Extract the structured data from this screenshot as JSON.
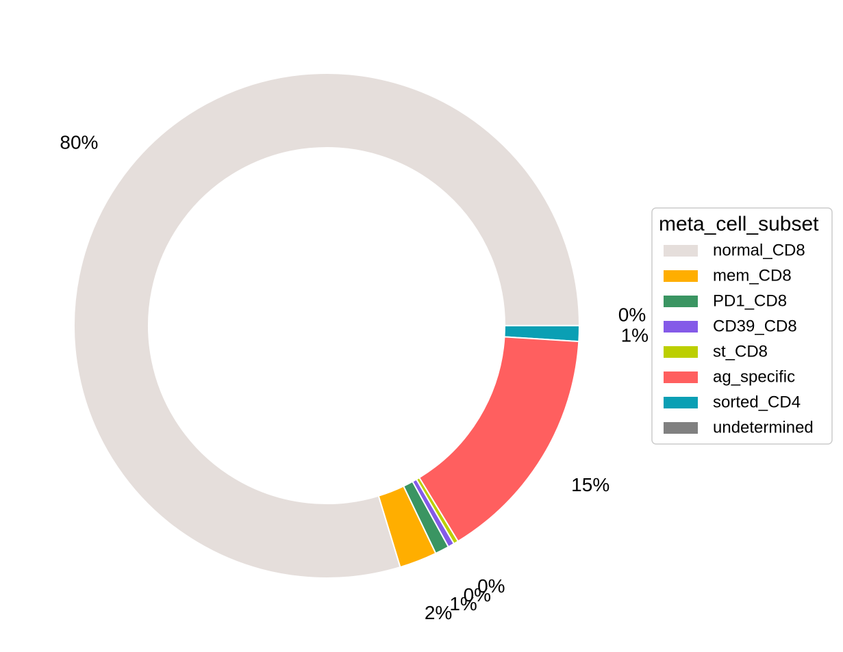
{
  "chart_data": {
    "type": "pie",
    "donut": true,
    "legend": {
      "title": "meta_cell_subset",
      "placement": "right"
    },
    "start_angle_deg": 0,
    "direction": "clockwise",
    "slices": [
      {
        "name": "sorted_CD4",
        "value": 1.0,
        "label": "1%",
        "color": "#0a9fb4"
      },
      {
        "name": "ag_specific",
        "value": 15.3,
        "label": "15%",
        "color": "#ff5f5f"
      },
      {
        "name": "st_CD8",
        "value": 0.3,
        "label": "0%",
        "color": "#bccf00"
      },
      {
        "name": "CD39_CD8",
        "value": 0.4,
        "label": "0%",
        "color": "#845ae8"
      },
      {
        "name": "PD1_CD8",
        "value": 0.9,
        "label": "1%",
        "color": "#3a9562"
      },
      {
        "name": "mem_CD8",
        "value": 2.4,
        "label": "2%",
        "color": "#ffae00"
      },
      {
        "name": "normal_CD8",
        "value": 79.7,
        "label": "80%",
        "color": "#e5dedb"
      },
      {
        "name": "undetermined",
        "value": 0.01,
        "label": "0%",
        "color": "#808080"
      }
    ],
    "legend_order": [
      "normal_CD8",
      "mem_CD8",
      "PD1_CD8",
      "CD39_CD8",
      "st_CD8",
      "ag_specific",
      "sorted_CD4",
      "undetermined"
    ]
  }
}
